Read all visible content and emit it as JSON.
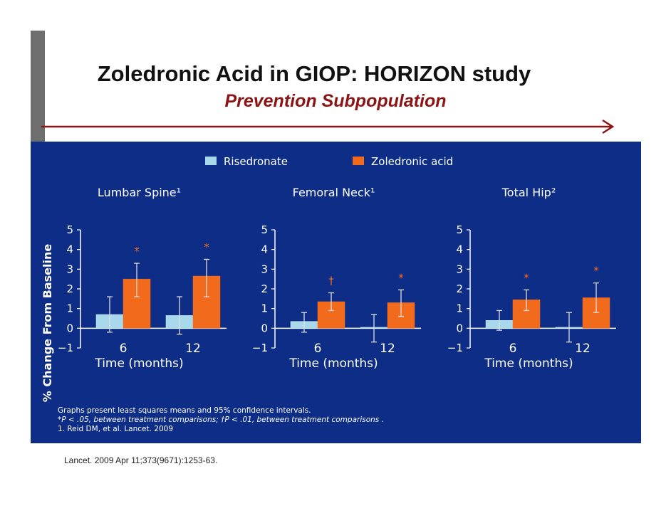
{
  "title": "Zoledronic Acid in GIOP: HORIZON study",
  "subtitle": "Prevention Subpopulation",
  "citation": "Lancet. 2009 Apr 11;373(9671):1253-63.",
  "footnotes": [
    "Graphs present least squares means and 95% confidence intervals.",
    "*P < .05, between treatment comparisons; †P < .01, between treatment comparisons .",
    "1. Reid DM, et al. Lancet. 2009"
  ],
  "colors": {
    "background": "#0d2d86",
    "risedronate": "#a8d8ec",
    "zoledronic": "#f26a1b",
    "axis": "#ffffff",
    "title_accent": "#8b1414"
  },
  "chart_data": [
    {
      "type": "bar",
      "title": "Lumbar Spine¹",
      "xlabel": "Time (months)",
      "ylabel": "% Change From Baseline",
      "categories": [
        "6",
        "12"
      ],
      "ylim": [
        -1,
        5
      ],
      "yticks": [
        "5",
        "4",
        "3",
        "2",
        "1",
        "0",
        "−1"
      ],
      "series": [
        {
          "name": "Risedronate",
          "values": [
            0.7,
            0.65
          ],
          "ci_low": [
            -0.2,
            -0.3
          ],
          "ci_high": [
            1.6,
            1.6
          ]
        },
        {
          "name": "Zoledronic acid",
          "values": [
            2.5,
            2.65
          ],
          "ci_low": [
            1.6,
            1.6
          ],
          "ci_high": [
            3.3,
            3.5
          ]
        }
      ],
      "annotations": [
        "*",
        "*"
      ]
    },
    {
      "type": "bar",
      "title": "Femoral Neck¹",
      "xlabel": "Time (months)",
      "categories": [
        "6",
        "12"
      ],
      "ylim": [
        -1,
        5
      ],
      "yticks": [
        "5",
        "4",
        "3",
        "2",
        "1",
        "0",
        "−1"
      ],
      "series": [
        {
          "name": "Risedronate",
          "values": [
            0.35,
            0.05
          ],
          "ci_low": [
            -0.2,
            -0.7
          ],
          "ci_high": [
            0.8,
            0.7
          ]
        },
        {
          "name": "Zoledronic acid",
          "values": [
            1.35,
            1.3
          ],
          "ci_low": [
            0.9,
            0.6
          ],
          "ci_high": [
            1.8,
            1.95
          ]
        }
      ],
      "annotations": [
        "†",
        "*"
      ]
    },
    {
      "type": "bar",
      "title": "Total Hip²",
      "xlabel": "Time (months)",
      "categories": [
        "6",
        "12"
      ],
      "ylim": [
        -1,
        5
      ],
      "yticks": [
        "5",
        "4",
        "3",
        "2",
        "1",
        "0",
        "−1"
      ],
      "series": [
        {
          "name": "Risedronate",
          "values": [
            0.4,
            0.05
          ],
          "ci_low": [
            -0.1,
            -0.7
          ],
          "ci_high": [
            0.9,
            0.8
          ]
        },
        {
          "name": "Zoledronic acid",
          "values": [
            1.45,
            1.55
          ],
          "ci_low": [
            0.9,
            0.8
          ],
          "ci_high": [
            1.95,
            2.3
          ]
        }
      ],
      "annotations": [
        "*",
        "*"
      ]
    }
  ]
}
